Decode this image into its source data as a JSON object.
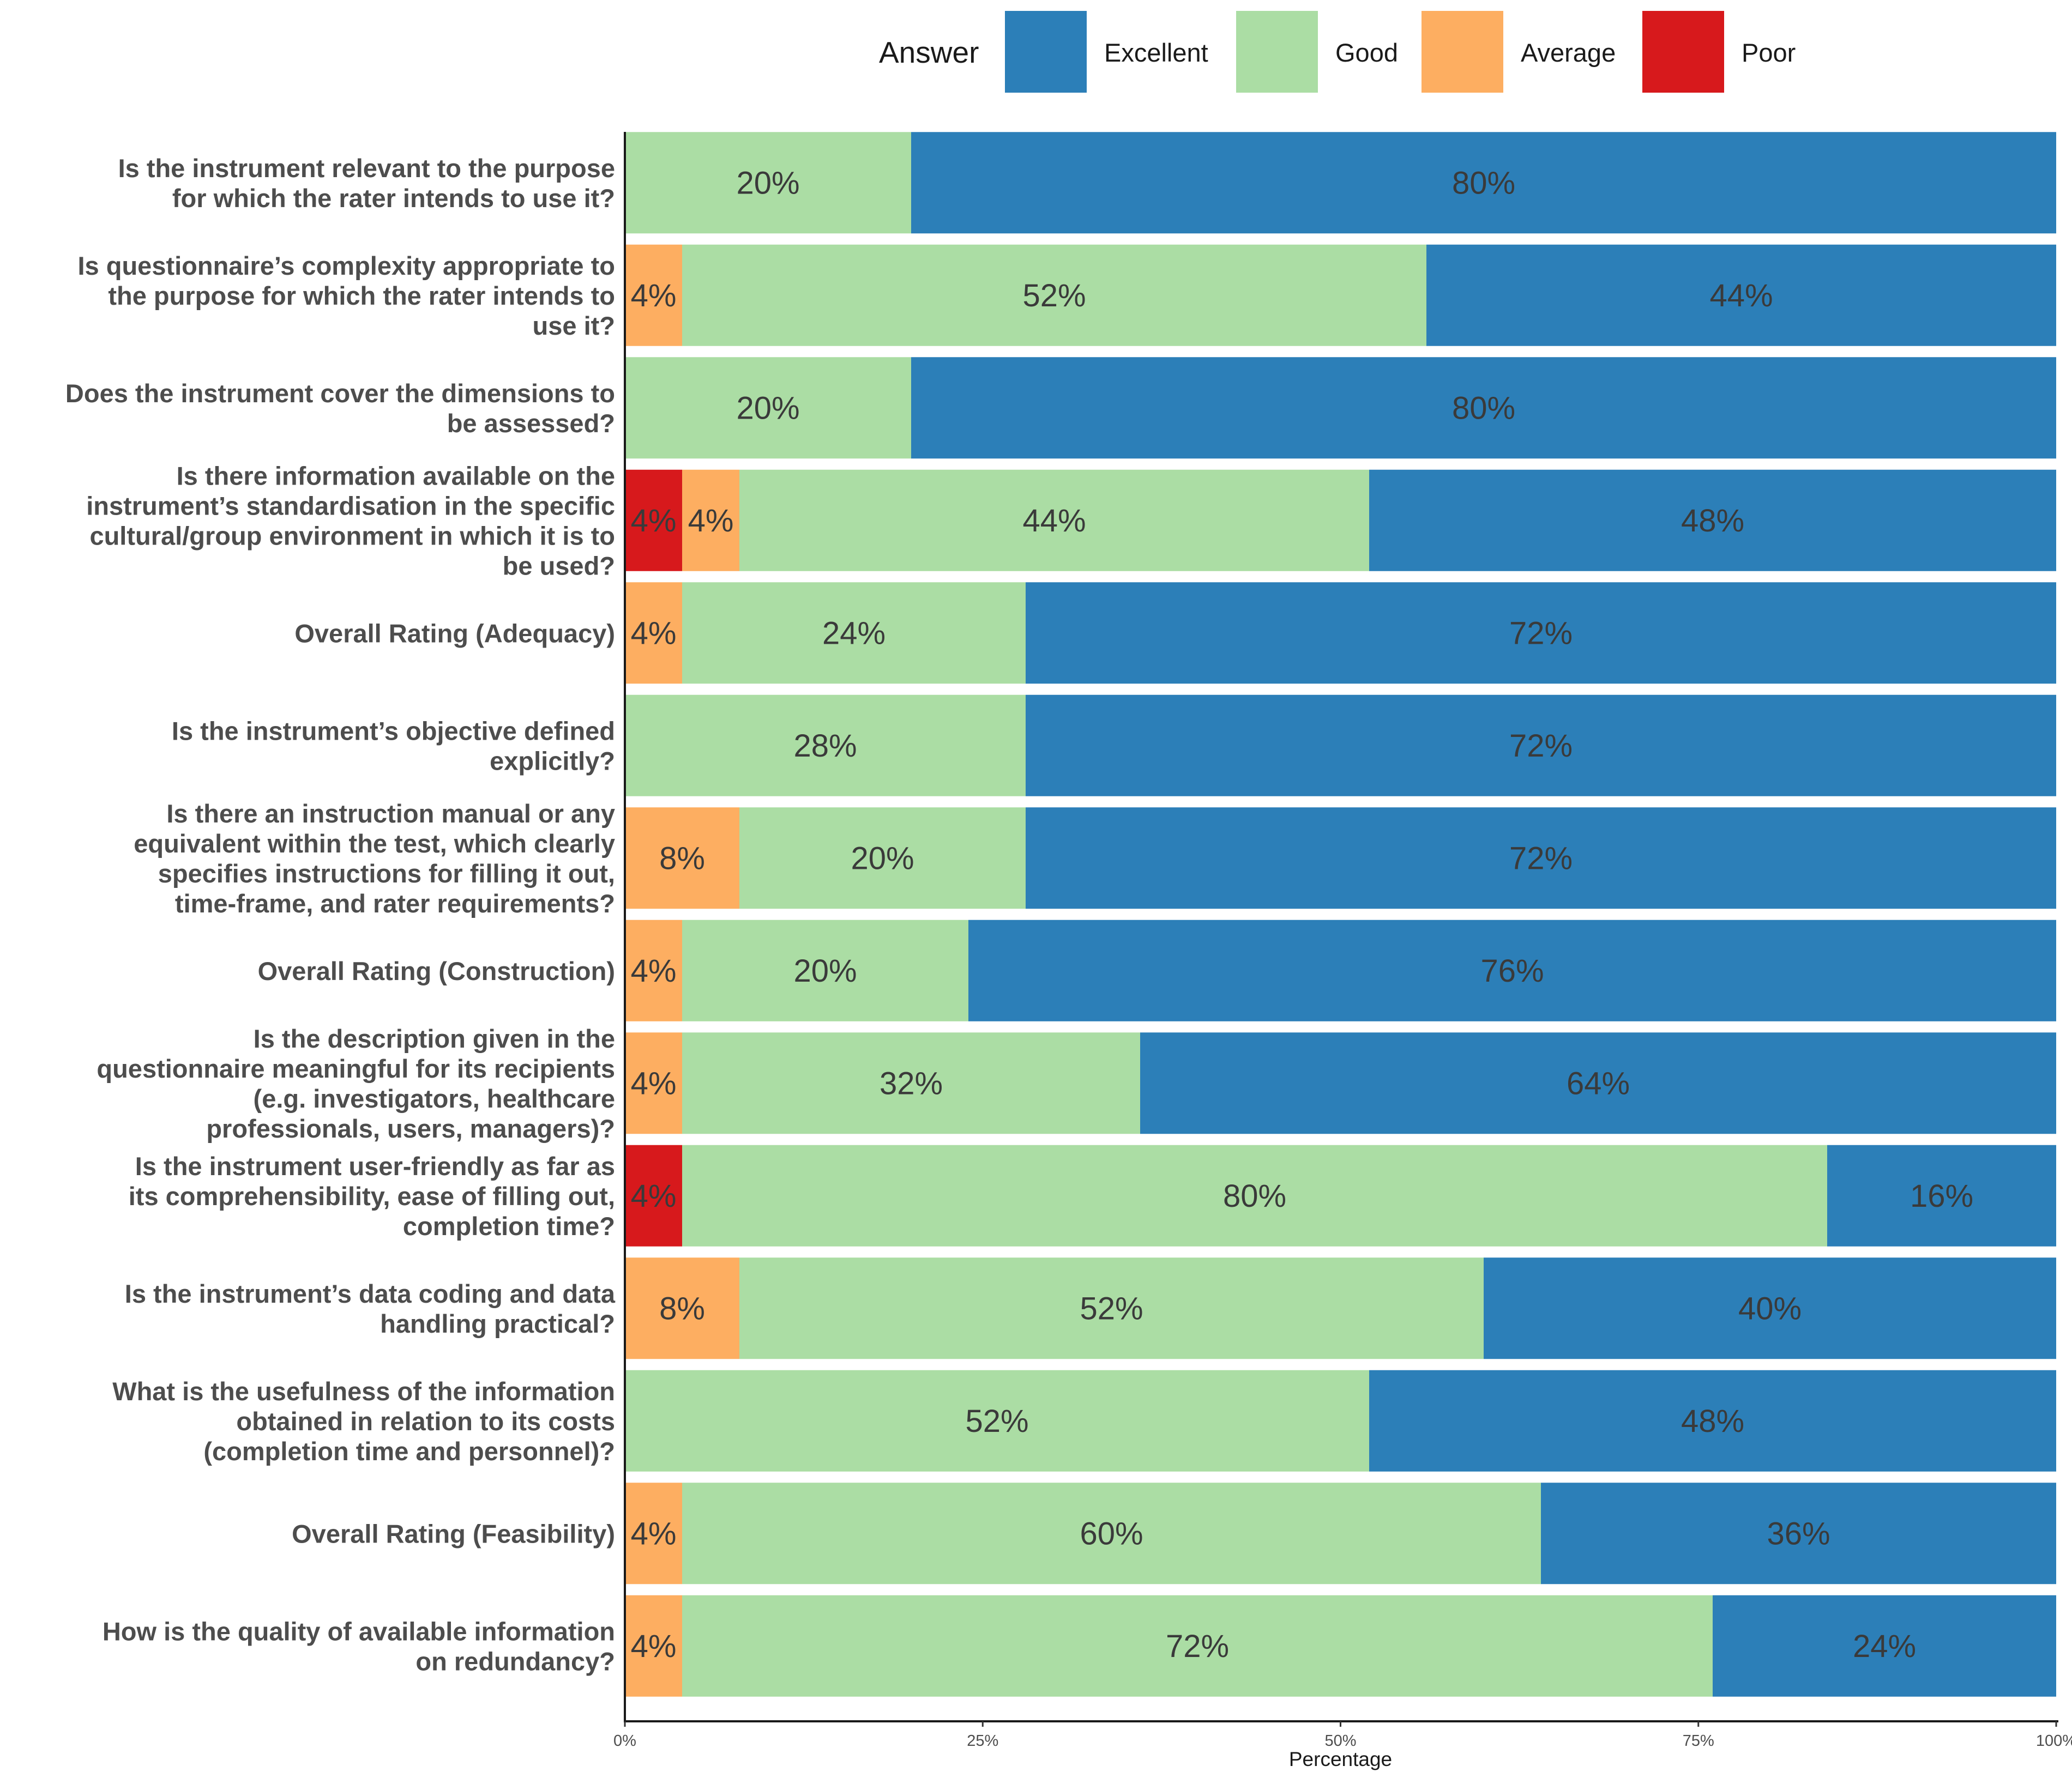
{
  "chart_data": {
    "type": "bar",
    "orientation": "horizontal",
    "stacked": true,
    "title": "",
    "xlabel": "Percentage",
    "ylabel": "",
    "xlim": [
      0,
      100
    ],
    "x_ticks": [
      "0%",
      "25%",
      "50%",
      "75%",
      "100%"
    ],
    "legend_title": "Answer",
    "legend_position": "top",
    "legend_order": [
      "Excellent",
      "Good",
      "Average",
      "Poor"
    ],
    "stack_order": [
      "Poor",
      "Average",
      "Good",
      "Excellent"
    ],
    "colors": {
      "Excellent": "#2c7fb8",
      "Good": "#abdda4",
      "Average": "#fdae61",
      "Poor": "#d7191c"
    },
    "categories": [
      [
        "Is the instrument relevant to the purpose",
        "for which the rater intends to use it?"
      ],
      [
        "Is questionnaire’s complexity appropriate to",
        "the purpose for which the rater intends to",
        "use it?"
      ],
      [
        "Does the instrument cover the dimensions to",
        "be assessed?"
      ],
      [
        "Is there information available on the",
        "instrument’s standardisation in the specific",
        "cultural/group environment in which it is to",
        "be used?"
      ],
      [
        "Overall Rating (Adequacy)"
      ],
      [
        "Is the instrument’s objective defined",
        "explicitly?"
      ],
      [
        "Is there an instruction manual or any",
        "equivalent within the test, which clearly",
        "specifies instructions for filling it out,",
        "time-frame, and rater requirements?"
      ],
      [
        "Overall Rating (Construction)"
      ],
      [
        "Is the description given in the",
        "questionnaire meaningful for its recipients",
        "(e.g. investigators, healthcare",
        "professionals, users, managers)?"
      ],
      [
        "Is the instrument user-friendly as far as",
        "its comprehensibility, ease of filling out,",
        "completion time?"
      ],
      [
        "Is the instrument’s data coding and data",
        "handling practical?"
      ],
      [
        "What is the usefulness of the information",
        "obtained in relation to its costs",
        "(completion time and personnel)?"
      ],
      [
        "Overall Rating (Feasibility)"
      ],
      [
        "How is the quality of available information",
        "on redundancy?"
      ]
    ],
    "series": [
      {
        "name": "Poor",
        "values": [
          0,
          0,
          0,
          4,
          0,
          0,
          0,
          0,
          0,
          4,
          0,
          0,
          0,
          0
        ]
      },
      {
        "name": "Average",
        "values": [
          0,
          4,
          0,
          4,
          4,
          0,
          8,
          4,
          4,
          0,
          8,
          0,
          4,
          4
        ]
      },
      {
        "name": "Good",
        "values": [
          20,
          52,
          20,
          44,
          24,
          28,
          20,
          20,
          32,
          80,
          52,
          52,
          60,
          72
        ]
      },
      {
        "name": "Excellent",
        "values": [
          80,
          44,
          80,
          48,
          72,
          72,
          72,
          76,
          64,
          16,
          40,
          48,
          36,
          24
        ]
      }
    ]
  }
}
